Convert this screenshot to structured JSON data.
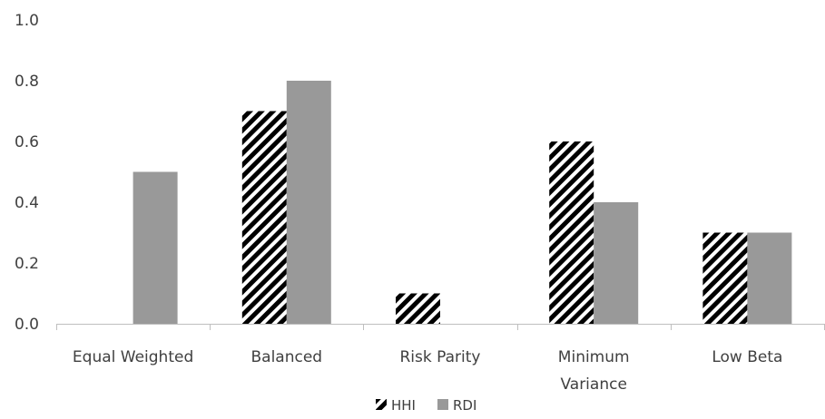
{
  "chart_data": {
    "type": "bar",
    "title": "",
    "xlabel": "",
    "ylabel": "",
    "categories": [
      [
        "Equal Weighted"
      ],
      [
        "Balanced"
      ],
      [
        "Risk Parity"
      ],
      [
        "Minimum",
        "Variance"
      ],
      [
        "Low Beta"
      ]
    ],
    "series": [
      {
        "name": "HHI",
        "values": [
          0.0,
          0.7,
          0.1,
          0.6,
          0.3
        ],
        "fill": "hatched"
      },
      {
        "name": "RDI",
        "values": [
          0.5,
          0.8,
          0.0,
          0.4,
          0.3
        ],
        "fill": "#999999"
      }
    ],
    "ylim": [
      0.0,
      1.0
    ],
    "yticks": [
      "0.0",
      "0.2",
      "0.4",
      "0.6",
      "0.8",
      "1.0"
    ],
    "grid": false,
    "legend": "bottom-center"
  },
  "colors": {
    "hatch": "#000000",
    "rdi": "#999999",
    "axis": "#bfbfbf",
    "text": "#404040"
  }
}
